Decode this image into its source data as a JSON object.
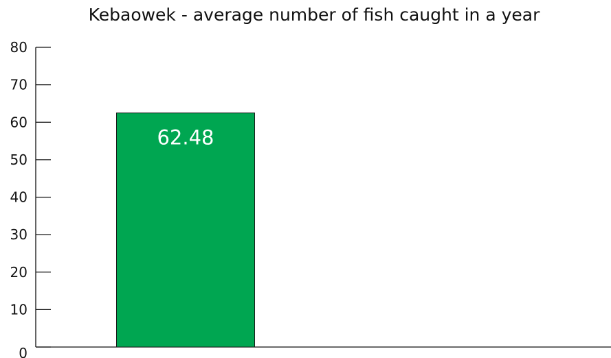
{
  "chart_data": {
    "type": "bar",
    "title": "Kebaowek - average number of fish caught in a year",
    "categories": [
      ""
    ],
    "values": [
      62.48
    ],
    "data_labels": [
      "62.48"
    ],
    "xlabel": "",
    "ylabel": "",
    "ylim": [
      0,
      80
    ],
    "yticks": [
      0,
      10,
      20,
      30,
      40,
      50,
      60,
      70,
      80
    ],
    "ytick_labels": [
      "0",
      "10",
      "20",
      "30",
      "40",
      "50",
      "60",
      "70",
      "80"
    ],
    "grid": false,
    "legend": "none",
    "colors": {
      "bar": "#00a651",
      "bar_outline": "#1a1a1a",
      "axis": "#111111",
      "data_label": "#ffffff"
    }
  }
}
